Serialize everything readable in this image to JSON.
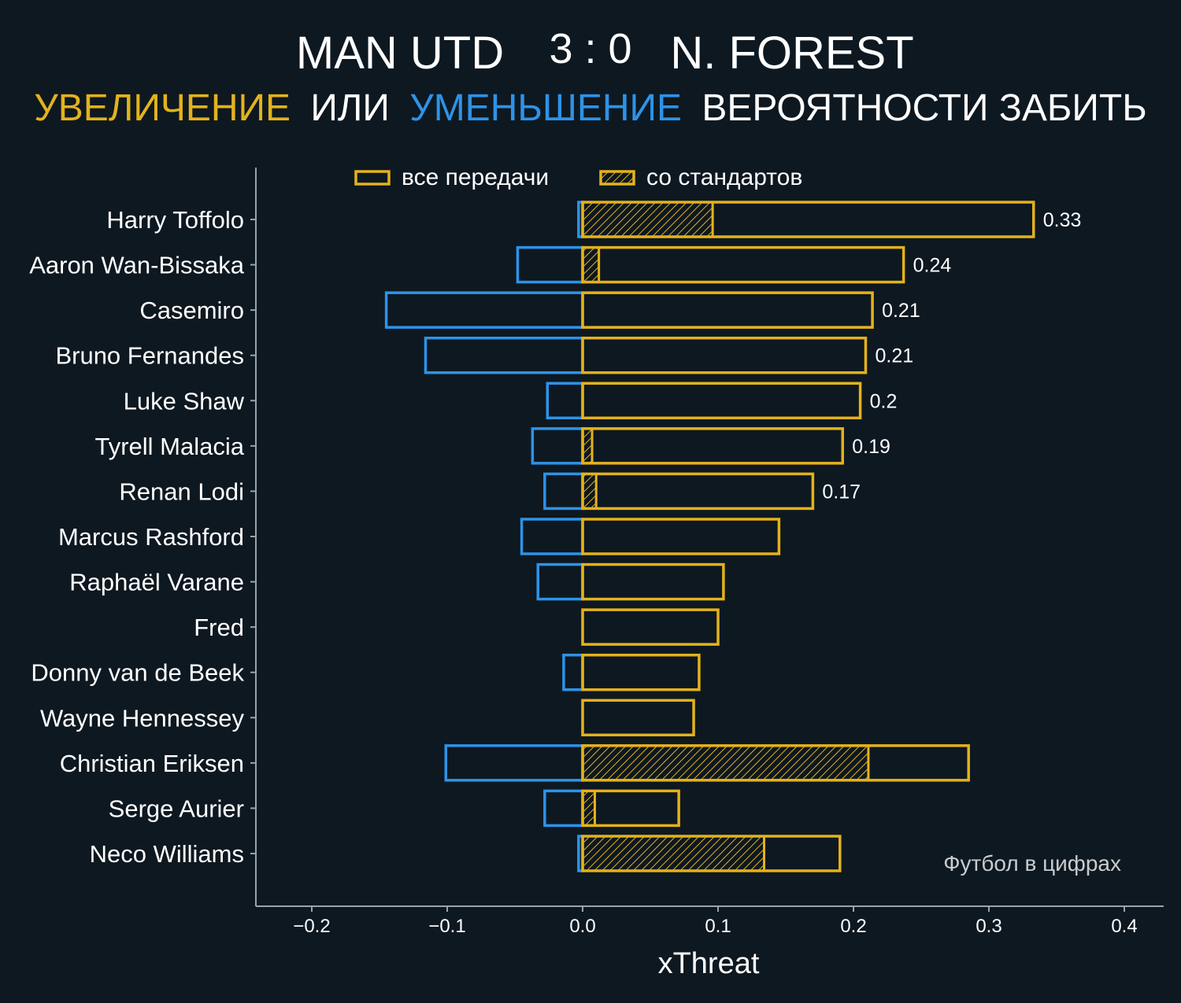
{
  "header": {
    "home_team": "MAN UTD",
    "score": "3 : 0",
    "away_team": "N. FOREST",
    "subtitle_part1": "УВЕЛИЧЕНИЕ",
    "subtitle_part2": "ИЛИ",
    "subtitle_part3": "УМЕНЬШЕНИЕ",
    "subtitle_part4": "ВЕРОЯТНОСТИ ЗАБИТЬ"
  },
  "colors": {
    "background": "#0e1820",
    "increase": "#e3b21c",
    "decrease": "#2d93e8",
    "text": "#ffffff",
    "axis": "#9aa3aa",
    "watermark": "#c9ccce"
  },
  "watermark": "Футбол в цифрах",
  "chart_data": {
    "type": "bar",
    "orientation": "horizontal",
    "xlabel": "xThreat",
    "ylabel": "",
    "xlim": [
      -0.24,
      0.43
    ],
    "xticks": [
      -0.2,
      -0.1,
      0.0,
      0.1,
      0.2,
      0.3,
      0.4
    ],
    "xtick_labels": [
      "−0.2",
      "−0.1",
      "0.0",
      "0.1",
      "0.2",
      "0.3",
      "0.4"
    ],
    "grid": false,
    "legend_placement": "top-left",
    "legend": [
      {
        "label": "все передачи",
        "style": "outline"
      },
      {
        "label": "со стандартов",
        "style": "hatched"
      }
    ],
    "categories": [
      "Harry Toffolo",
      "Aaron Wan-Bissaka",
      "Casemiro",
      "Bruno Fernandes",
      "Luke Shaw",
      "Tyrell Malacia",
      "Renan Lodi",
      "Marcus Rashford",
      "Raphaël Varane",
      "Fred",
      "Donny van de Beek",
      "Wayne Hennessey",
      "Christian Eriksen",
      "Serge Aurier",
      "Neco Williams"
    ],
    "series": [
      {
        "name": "все передачи",
        "positive": [
          0.333,
          0.237,
          0.214,
          0.209,
          0.205,
          0.192,
          0.17,
          0.145,
          0.104,
          0.1,
          0.086,
          0.082,
          0.285,
          0.071,
          0.19
        ],
        "negative": [
          -0.003,
          -0.048,
          -0.145,
          -0.116,
          -0.026,
          -0.037,
          -0.028,
          -0.045,
          -0.033,
          0.0,
          -0.014,
          0.0,
          -0.101,
          -0.028,
          -0.003
        ]
      },
      {
        "name": "со стандартов",
        "positive": [
          0.096,
          0.012,
          0.0,
          0.0,
          0.0,
          0.007,
          0.01,
          0.0,
          0.0,
          0.0,
          0.0,
          0.0,
          0.211,
          0.009,
          0.134
        ]
      }
    ],
    "data_labels": [
      "0.33",
      "0.24",
      "0.21",
      "0.21",
      "0.2",
      "0.19",
      "0.17",
      "",
      "",
      "",
      "",
      "",
      "",
      "",
      ""
    ]
  }
}
